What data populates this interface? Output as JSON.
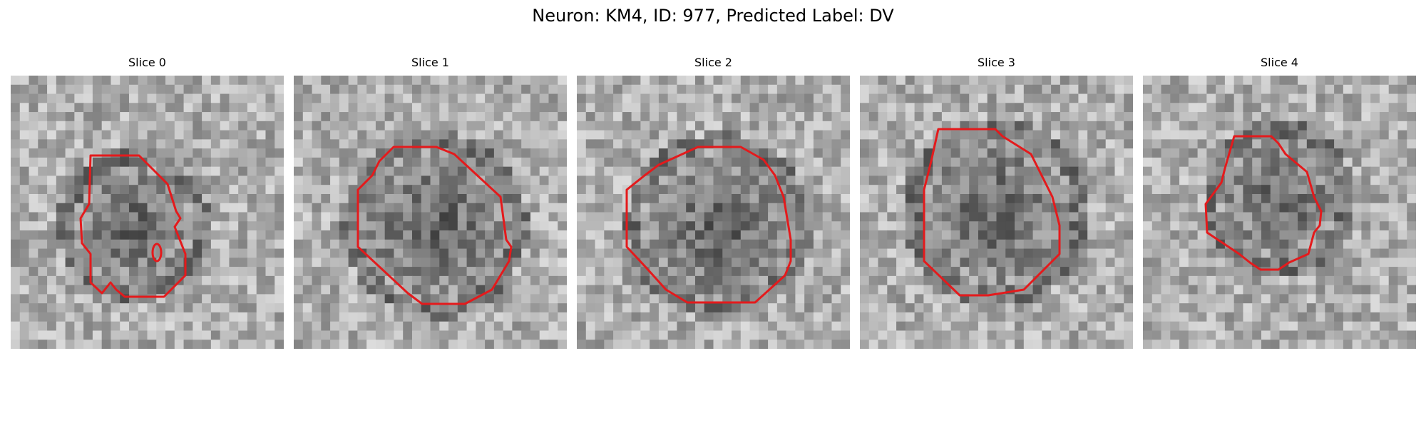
{
  "figure": {
    "title": "Neuron: KM4, ID: 977, Predicted Label: DV"
  },
  "panels": [
    {
      "title": "Slice 0"
    },
    {
      "title": "Slice 1"
    },
    {
      "title": "Slice 2"
    },
    {
      "title": "Slice 3"
    },
    {
      "title": "Slice 4"
    }
  ],
  "overlay": {
    "contour_color": "#e41a1c"
  }
}
